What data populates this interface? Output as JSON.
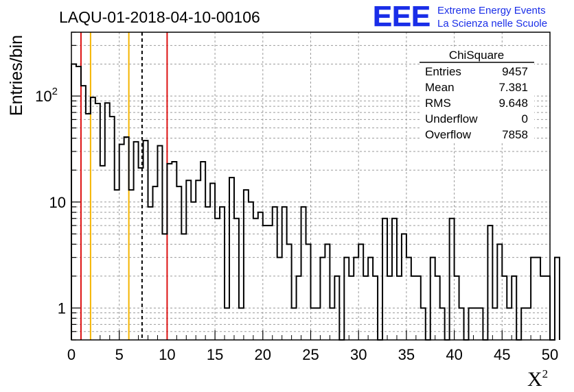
{
  "chart_data": {
    "type": "histogram",
    "title": "LAQU-01-2018-04-10-00106",
    "xlabel": "X",
    "xlabel_superscript": "2",
    "ylabel": "Entries/bin",
    "xlim": [
      0,
      50
    ],
    "ylim": [
      0.5,
      400
    ],
    "yscale": "log",
    "grid": true,
    "bin_width": 0.5,
    "x_ticks": [
      "0",
      "5",
      "10",
      "15",
      "20",
      "25",
      "30",
      "35",
      "40",
      "45",
      "50"
    ],
    "y_ticks": [
      {
        "value": 1,
        "base": "1",
        "exp": ""
      },
      {
        "value": 10,
        "base": "10",
        "exp": ""
      },
      {
        "value": 100,
        "base": "10",
        "exp": "2"
      }
    ],
    "counts": [
      200,
      190,
      125,
      68,
      97,
      85,
      22,
      86,
      64,
      13,
      35,
      41,
      13,
      37,
      21,
      38,
      9,
      14,
      34,
      5,
      23,
      24,
      14,
      5,
      16,
      10,
      16,
      24,
      9,
      15,
      7,
      9,
      1,
      17,
      7,
      1,
      13,
      10,
      7,
      8,
      6,
      6,
      9,
      3,
      9,
      4,
      1,
      2,
      9,
      4,
      1,
      1,
      3,
      4,
      1,
      2,
      0,
      3,
      2,
      3,
      4,
      2,
      3,
      2,
      0,
      7,
      2,
      7,
      2,
      5,
      3,
      2,
      2,
      1,
      0,
      3,
      2,
      1,
      0,
      7,
      2,
      1,
      0,
      1,
      1,
      1,
      0,
      6,
      1,
      4,
      2,
      1,
      2,
      0,
      1,
      1,
      3,
      3,
      2,
      2,
      0,
      3
    ],
    "vertical_lines": [
      {
        "x": 1.0,
        "color": "#dd1111",
        "style": "solid"
      },
      {
        "x": 2.0,
        "color": "#f5b400",
        "style": "solid"
      },
      {
        "x": 6.0,
        "color": "#f5b400",
        "style": "solid"
      },
      {
        "x": 7.381,
        "color": "#000000",
        "style": "dashed"
      },
      {
        "x": 10.0,
        "color": "#dd1111",
        "style": "solid"
      }
    ],
    "stats_box": {
      "title": "ChiSquare",
      "rows": [
        {
          "label": "Entries",
          "value": "9457"
        },
        {
          "label": "Mean",
          "value": "7.381"
        },
        {
          "label": "RMS",
          "value": "9.648"
        },
        {
          "label": "Underflow",
          "value": "0"
        },
        {
          "label": "Overflow",
          "value": "7858"
        }
      ]
    }
  },
  "logo": {
    "mark": "EEE",
    "line1": "Extreme Energy Events",
    "line2": "La Scienza nelle Scuole",
    "color": "#1a2ee8"
  }
}
